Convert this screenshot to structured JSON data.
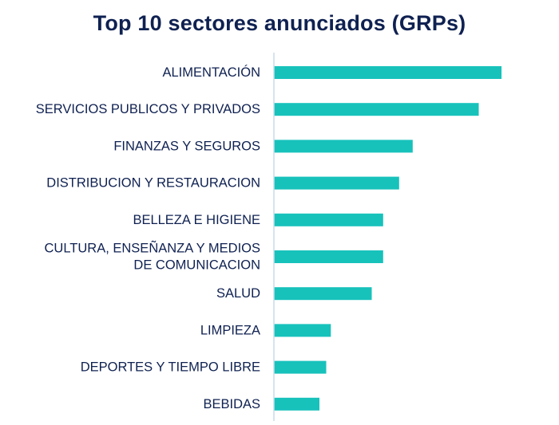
{
  "chart_data": {
    "type": "bar",
    "orientation": "horizontal",
    "title": "Top 10 sectores anunciados (GRPs)",
    "xlabel": "",
    "ylabel": "",
    "categories": [
      "ALIMENTACIÓN",
      "SERVICIOS PUBLICOS Y PRIVADOS",
      "FINANZAS Y SEGUROS",
      "DISTRIBUCION Y RESTAURACION",
      "BELLEZA E HIGIENE",
      "CULTURA, ENSEÑANZA Y MEDIOS DE COMUNICACION",
      "SALUD",
      "LIMPIEZA",
      "DEPORTES Y TIEMPO LIBRE",
      "BEBIDAS"
    ],
    "category_lines": [
      [
        "ALIMENTACIÓN"
      ],
      [
        "SERVICIOS PUBLICOS Y PRIVADOS"
      ],
      [
        "FINANZAS Y SEGUROS"
      ],
      [
        "DISTRIBUCION Y RESTAURACION"
      ],
      [
        "BELLEZA E HIGIENE"
      ],
      [
        "CULTURA, ENSEÑANZA Y MEDIOS",
        "DE COMUNICACION"
      ],
      [
        "SALUD"
      ],
      [
        "LIMPIEZA"
      ],
      [
        "DEPORTES Y TIEMPO LIBRE"
      ],
      [
        "BEBIDAS"
      ]
    ],
    "values": [
      100,
      90,
      61,
      55,
      48,
      48,
      43,
      25,
      23,
      20
    ],
    "xlim": [
      0,
      100
    ],
    "grid": false,
    "legend": "none",
    "bar_color": "#17c2bb",
    "axis_color": "#c9dceb",
    "text_color": "#0f2151"
  }
}
